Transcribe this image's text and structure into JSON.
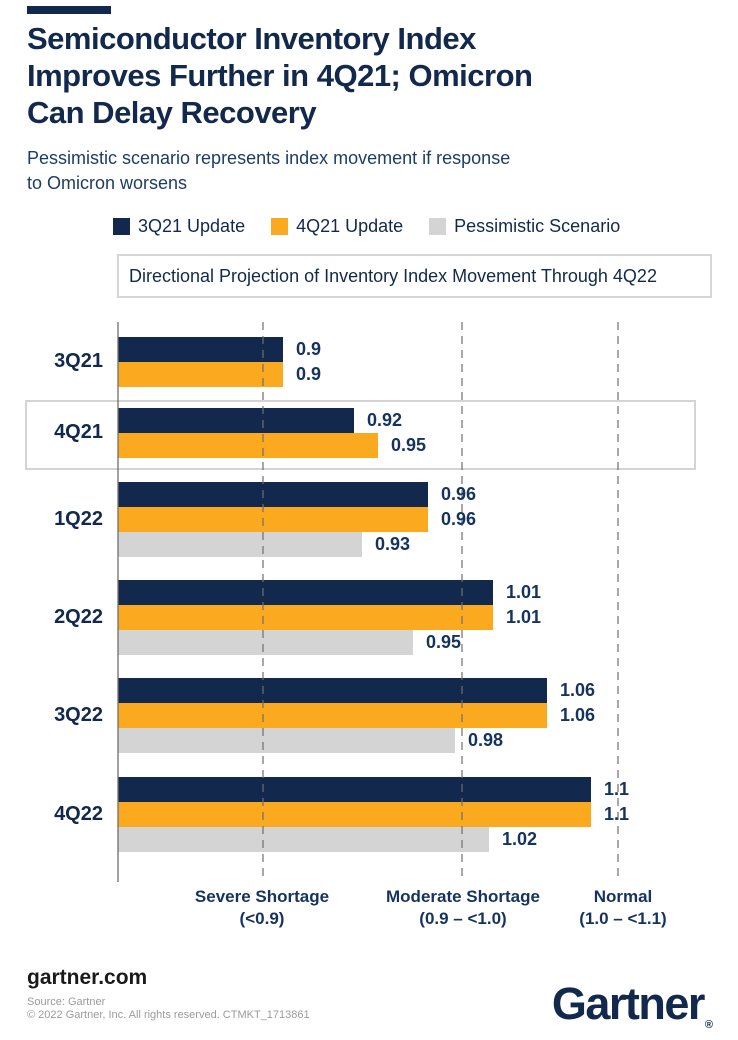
{
  "brand_bar": {
    "color": "#12294D"
  },
  "header": {
    "title_lines": [
      "Semiconductor Inventory Index",
      "Improves Further in 4Q21; Omicron",
      "Can Delay Recovery"
    ],
    "subtitle_lines": [
      "Pessimistic scenario represents index movement if response",
      "to Omicron worsens"
    ]
  },
  "legend": {
    "items": [
      {
        "label": "3Q21 Update",
        "color": "#12294D"
      },
      {
        "label": "4Q21 Update",
        "color": "#FBAA1F"
      },
      {
        "label": "Pessimistic Scenario",
        "color": "#D4D4D4"
      }
    ]
  },
  "callout": {
    "text": "Directional Projection of Inventory Index Movement Through 4Q22"
  },
  "chart_data": {
    "type": "bar",
    "orientation": "horizontal",
    "title": "Directional Projection of Inventory Index Movement Through 4Q22",
    "categories": [
      "3Q21",
      "4Q21",
      "1Q22",
      "2Q22",
      "3Q22",
      "4Q22"
    ],
    "series": [
      {
        "name": "3Q21 Update",
        "color": "#12294D",
        "values": [
          0.9,
          0.92,
          0.96,
          1.01,
          1.06,
          1.1
        ]
      },
      {
        "name": "4Q21 Update",
        "color": "#FBAA1F",
        "values": [
          0.9,
          0.95,
          0.96,
          1.01,
          1.06,
          1.1
        ]
      },
      {
        "name": "Pessimistic Scenario",
        "color": "#D4D4D4",
        "values": [
          null,
          null,
          0.93,
          0.95,
          0.98,
          1.02
        ]
      }
    ],
    "highlighted_category": "4Q21",
    "x_zones": [
      {
        "title": "Severe Shortage",
        "range": "(<0.9)"
      },
      {
        "title": "Moderate Shortage",
        "range": "(0.9 – <1.0)"
      },
      {
        "title": "Normal",
        "range": "(1.0 – <1.1)"
      }
    ],
    "grid": "dashed-vertical",
    "value_label_format": "as-shown"
  },
  "footer": {
    "site": "gartner.com",
    "source_line": "Source: Gartner",
    "copyright_line": "© 2022 Gartner, Inc. All rights reserved. CTMKT_1713861",
    "logo_text": "Gartner",
    "logo_reg": "®"
  }
}
